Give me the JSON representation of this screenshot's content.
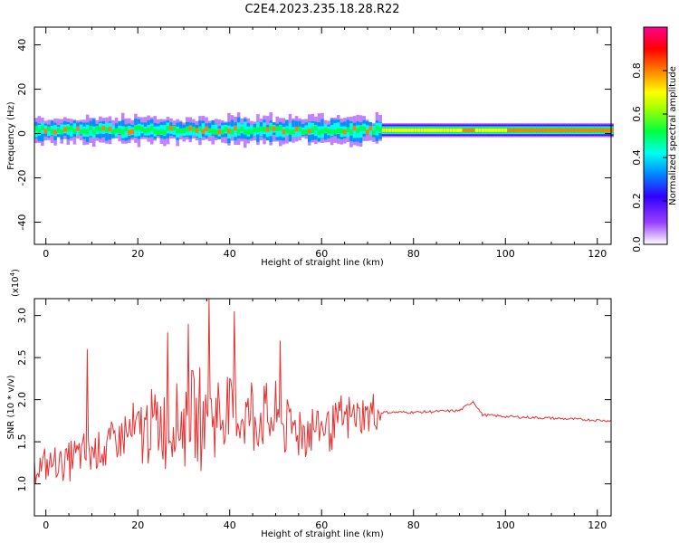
{
  "title": "C2E4.2023.235.18.28.R22",
  "chart_data": [
    {
      "type": "heatmap",
      "xlabel": "Height of straight line (km)",
      "ylabel": "Frequency (Hz)",
      "xlim": [
        -2.5,
        123
      ],
      "ylim": [
        -50,
        48
      ],
      "xticks": [
        0,
        20,
        40,
        60,
        80,
        100,
        120
      ],
      "yticks": [
        -40,
        -20,
        0,
        20,
        40
      ],
      "colorbar": {
        "label": "Normalized spectral amplitude",
        "range": [
          0.0,
          1.0
        ],
        "ticks": [
          0.0,
          0.2,
          0.4,
          0.6,
          0.8
        ],
        "colormap": [
          "#ffffff",
          "#7a00ff",
          "#0060ff",
          "#00ffff",
          "#00ff40",
          "#ffff00",
          "#ff8000",
          "#ff0000",
          "#ff0080"
        ]
      },
      "band": {
        "center_hz": 1.5,
        "note": "energy concentrated between about -5 Hz and 8 Hz; broad noisy band up to ~73 km, narrow stable band above"
      }
    },
    {
      "type": "line",
      "xlabel": "Height of straight line (km)",
      "ylabel": "SNR (10 * v/v)",
      "y_multiplier": "(x10",
      "y_multiplier_exp": "4",
      "y_multiplier_close": ")",
      "xlim": [
        -2.5,
        123
      ],
      "ylim": [
        0.62,
        3.2
      ],
      "xticks": [
        0,
        20,
        40,
        60,
        80,
        100,
        120
      ],
      "yticks": [
        1.0,
        1.5,
        2.0,
        2.5,
        3.0
      ],
      "yticklabels": [
        "1.0",
        "1.5",
        "2.0",
        "2.5",
        "3.0"
      ],
      "color": "#e83030",
      "series_summary": {
        "noisy_segment_x": [
          -2.5,
          73
        ],
        "noisy_segment_center": [
          1.2,
          1.25,
          1.35,
          1.45,
          1.6,
          1.7,
          1.75,
          1.8,
          1.85,
          1.8,
          1.7,
          1.65,
          1.7,
          1.8,
          1.85
        ],
        "noisy_segment_amplitude": [
          0.2,
          0.25,
          0.3,
          0.35,
          0.45,
          0.55,
          0.6,
          0.65,
          0.6,
          0.55,
          0.45,
          0.4,
          0.35,
          0.3,
          0.25
        ],
        "peaks": [
          [
            9,
            2.6
          ],
          [
            35.5,
            3.2
          ],
          [
            41,
            3.05
          ],
          [
            26.5,
            2.8
          ],
          [
            31,
            2.9
          ],
          [
            51,
            2.7
          ]
        ],
        "smooth_segment": [
          [
            73,
            1.85
          ],
          [
            80,
            1.85
          ],
          [
            90,
            1.87
          ],
          [
            93,
            1.98
          ],
          [
            95,
            1.82
          ],
          [
            100,
            1.8
          ],
          [
            110,
            1.78
          ],
          [
            123,
            1.75
          ]
        ]
      }
    }
  ]
}
